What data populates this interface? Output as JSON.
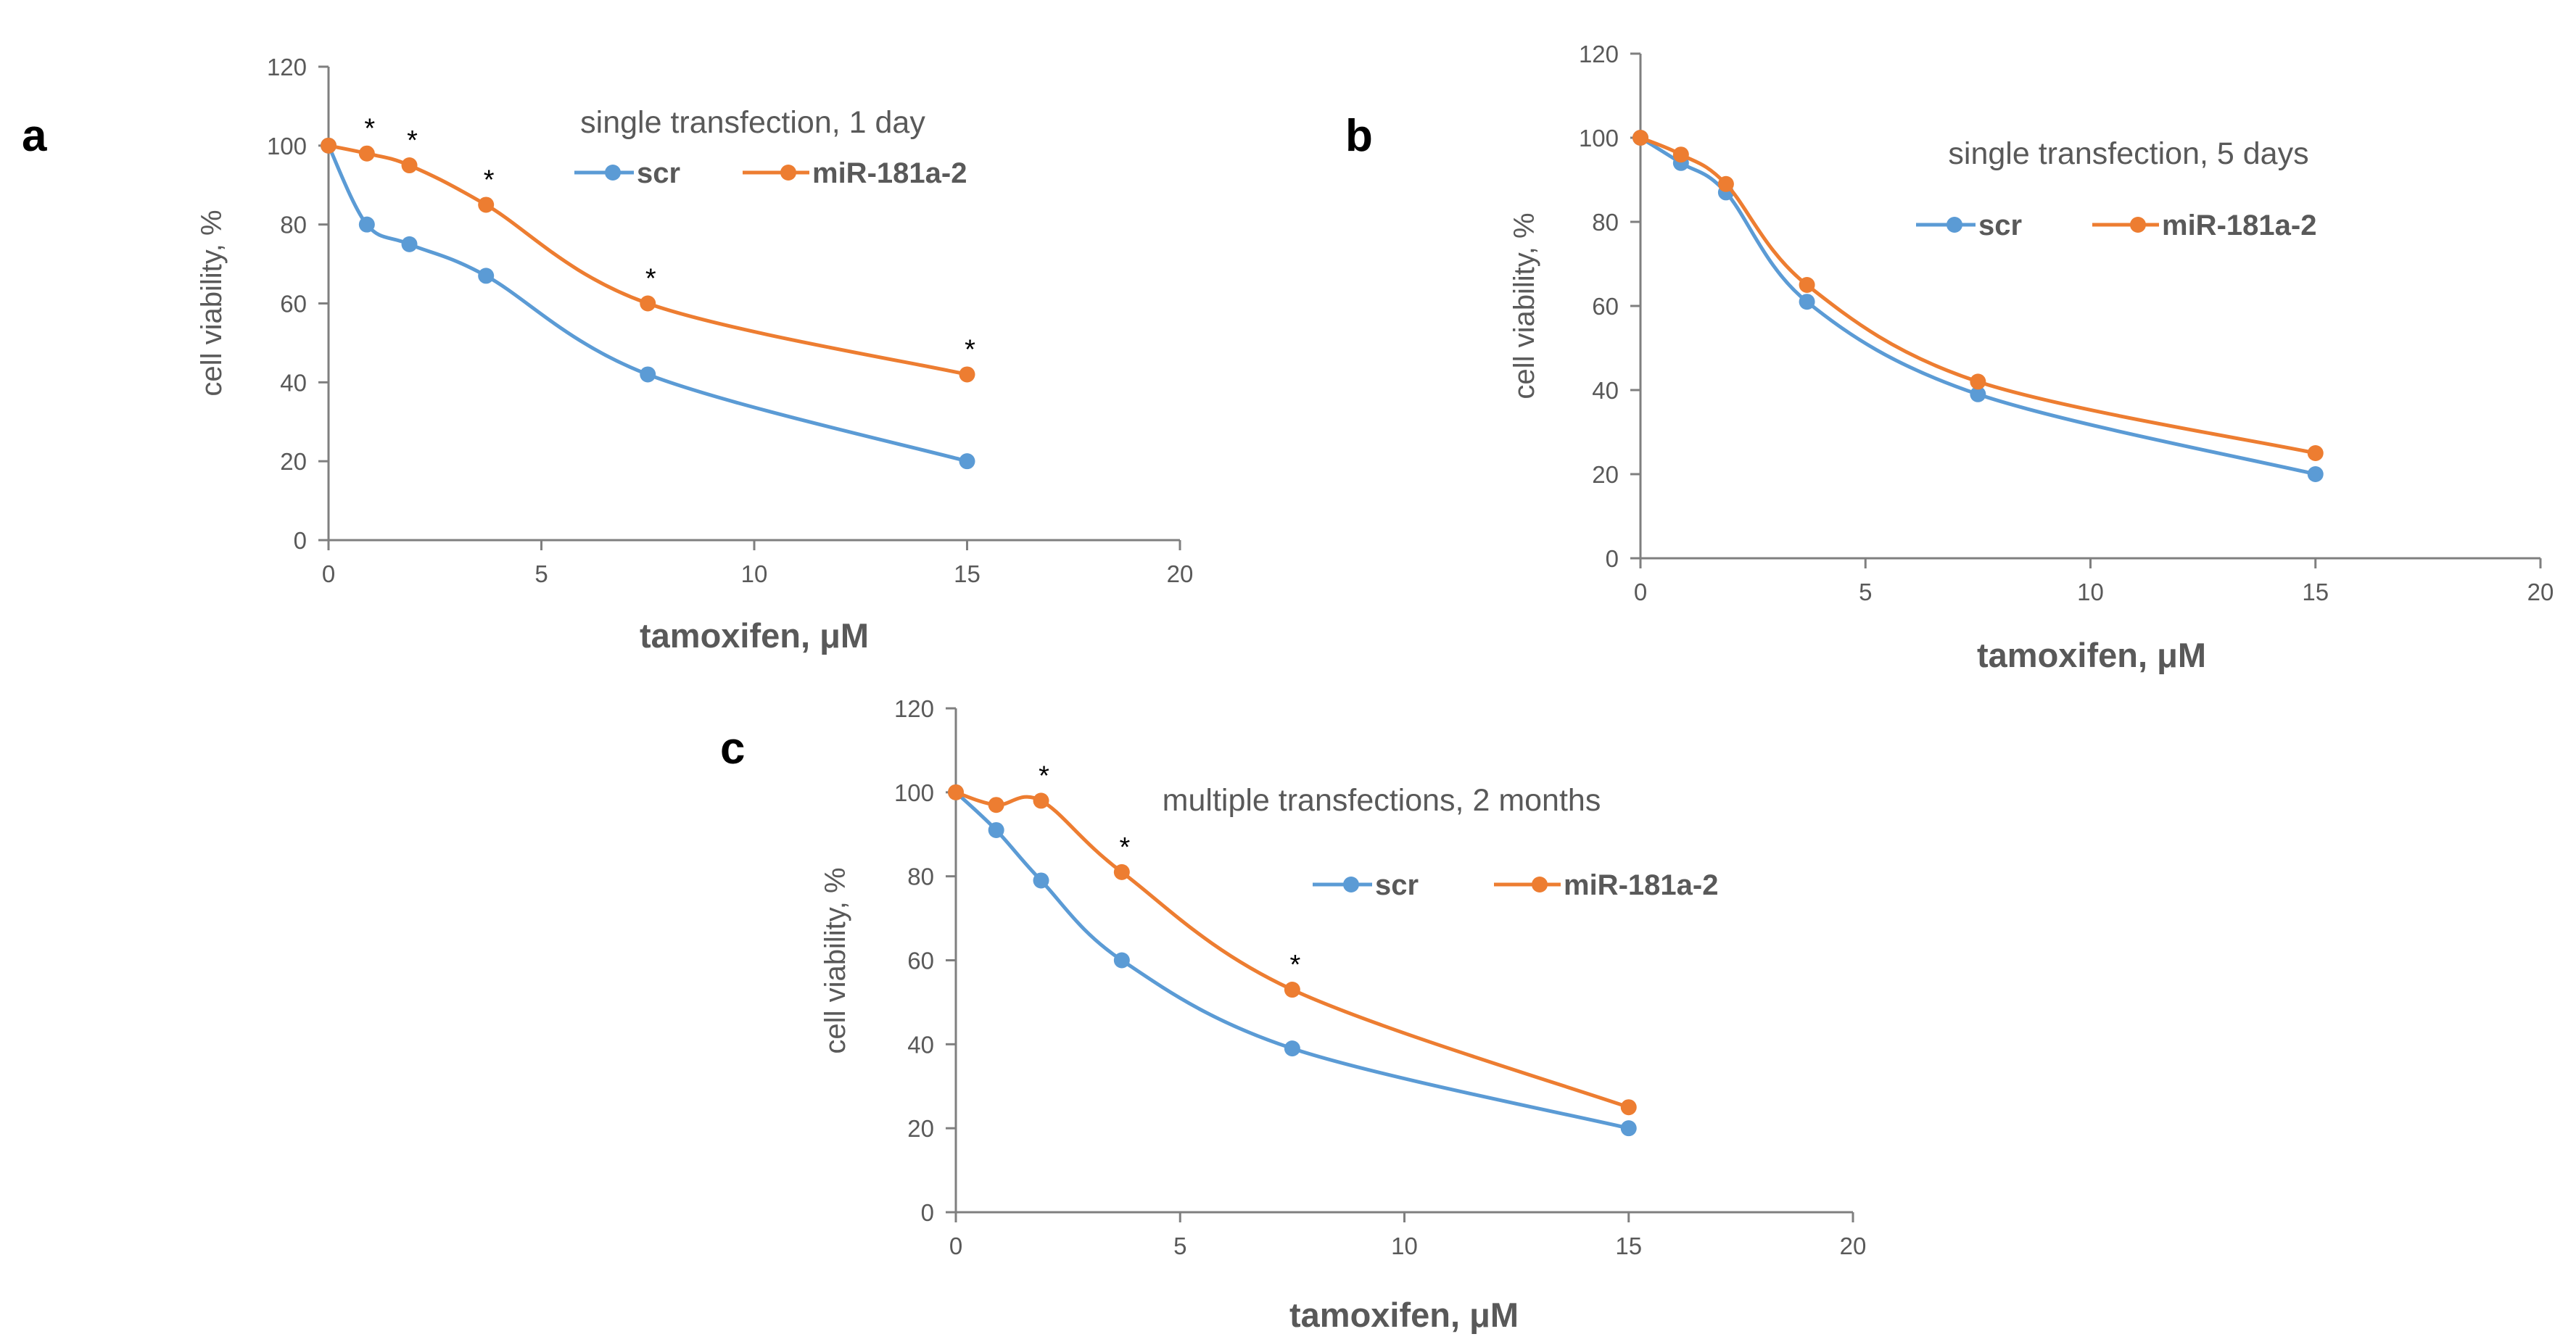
{
  "chart_data": [
    {
      "type": "line",
      "panel_label": "a",
      "title": "single transfection, 1 day",
      "xlabel": "tamoxifen, μM",
      "ylabel": "cell viability, %",
      "xlim": [
        0,
        20
      ],
      "ylim": [
        0,
        120
      ],
      "xticks": [
        0,
        5,
        10,
        15,
        20
      ],
      "yticks": [
        0,
        20,
        40,
        60,
        80,
        100,
        120
      ],
      "grid": false,
      "legend_position": "top-center",
      "series": [
        {
          "name": "scr",
          "color": "#5B9BD5",
          "x": [
            0,
            0.9,
            1.9,
            3.7,
            7.5,
            15
          ],
          "y": [
            100,
            80,
            75,
            67,
            42,
            20
          ]
        },
        {
          "name": "miR-181a-2",
          "color": "#ED7D31",
          "x": [
            0,
            0.9,
            1.9,
            3.7,
            7.5,
            15
          ],
          "y": [
            100,
            98,
            95,
            85,
            60,
            42
          ]
        }
      ],
      "significance_marks": [
        {
          "x": 0.9,
          "y": 98,
          "label": "*"
        },
        {
          "x": 1.9,
          "y": 95,
          "label": "*"
        },
        {
          "x": 3.7,
          "y": 85,
          "label": "*"
        },
        {
          "x": 7.5,
          "y": 60,
          "label": "*"
        },
        {
          "x": 15,
          "y": 42,
          "label": "*"
        }
      ]
    },
    {
      "type": "line",
      "panel_label": "b",
      "title": "single transfection, 5 days",
      "xlabel": "tamoxifen, μM",
      "ylabel": "cell viability, %",
      "xlim": [
        0,
        20
      ],
      "ylim": [
        0,
        120
      ],
      "xticks": [
        0,
        5,
        10,
        15,
        20
      ],
      "yticks": [
        0,
        20,
        40,
        60,
        80,
        100,
        120
      ],
      "grid": false,
      "legend_position": "top-center",
      "series": [
        {
          "name": "scr",
          "color": "#5B9BD5",
          "x": [
            0,
            0.9,
            1.9,
            3.7,
            7.5,
            15
          ],
          "y": [
            100,
            94,
            87,
            61,
            39,
            20
          ]
        },
        {
          "name": "miR-181a-2",
          "color": "#ED7D31",
          "x": [
            0,
            0.9,
            1.9,
            3.7,
            7.5,
            15
          ],
          "y": [
            100,
            96,
            89,
            65,
            42,
            25
          ]
        }
      ],
      "significance_marks": []
    },
    {
      "type": "line",
      "panel_label": "c",
      "title": "multiple transfections, 2 months",
      "xlabel": "tamoxifen, μM",
      "ylabel": "cell viability, %",
      "xlim": [
        0,
        20
      ],
      "ylim": [
        0,
        120
      ],
      "xticks": [
        0,
        5,
        10,
        15,
        20
      ],
      "yticks": [
        0,
        20,
        40,
        60,
        80,
        100,
        120
      ],
      "grid": false,
      "legend_position": "top-center",
      "series": [
        {
          "name": "scr",
          "color": "#5B9BD5",
          "x": [
            0,
            0.9,
            1.9,
            3.7,
            7.5,
            15
          ],
          "y": [
            100,
            91,
            79,
            60,
            39,
            20
          ]
        },
        {
          "name": "miR-181a-2",
          "color": "#ED7D31",
          "x": [
            0,
            0.9,
            1.9,
            3.7,
            7.5,
            15
          ],
          "y": [
            100,
            97,
            98,
            81,
            53,
            25
          ]
        }
      ],
      "significance_marks": [
        {
          "x": 1.9,
          "y": 98,
          "label": "*"
        },
        {
          "x": 3.7,
          "y": 81,
          "label": "*"
        },
        {
          "x": 7.5,
          "y": 53,
          "label": "*"
        }
      ]
    }
  ]
}
